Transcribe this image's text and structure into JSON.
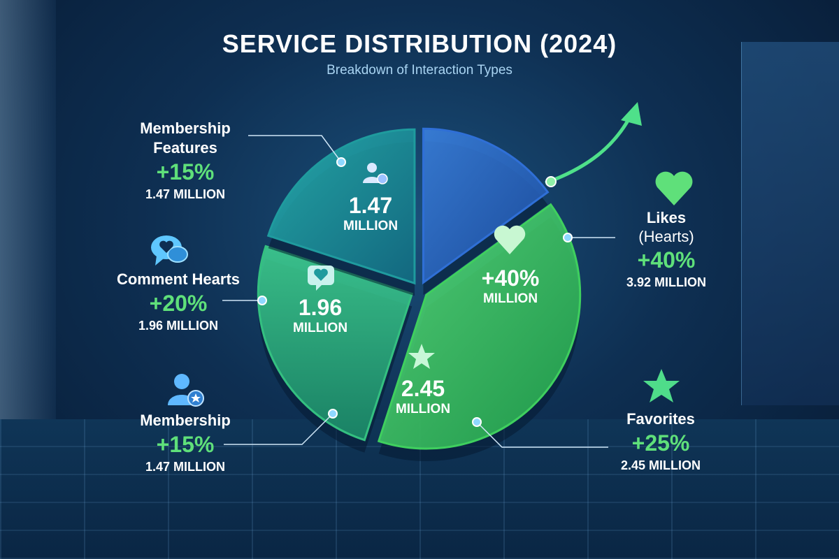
{
  "chart_data": {
    "type": "pie",
    "title": "SERVICE DISTRIBUTION (2024)",
    "subtitle": "Breakdown of Interaction Types",
    "unit_label": "MILLION",
    "slices": [
      {
        "name": "Membership Features",
        "value": 1.47,
        "growth": "+15%",
        "inner_value": "1.47",
        "inner_unit": "MILLION",
        "amount_label": "1.47 MILLION",
        "color": "#2f6fd6"
      },
      {
        "name": "Likes",
        "name_sub": "(Hearts)",
        "value": 3.92,
        "growth": "+40%",
        "inner_value": "+40%",
        "inner_unit": "MILLION",
        "amount_label": "3.92 MILLION",
        "color": "#3fcf5e"
      },
      {
        "name": "Favorites",
        "value": 2.45,
        "growth": "+25%",
        "inner_value": "2.45",
        "inner_unit": "MILLION",
        "amount_label": "2.45 MILLION",
        "color": "#34c080"
      },
      {
        "name": "Comment Hearts",
        "value": 1.96,
        "growth": "+20%",
        "inner_value": "1.96",
        "inner_unit": "MILLION",
        "amount_label": "1.96 MILLION",
        "color": "#1f9b9e"
      }
    ],
    "extra_labels": [
      {
        "name": "Membership",
        "growth": "+15%",
        "amount_label": "1.47 MILLION"
      }
    ]
  },
  "icons": {
    "membership_features": "user-badge-icon",
    "comment_hearts": "chat-heart-icon",
    "membership": "user-star-icon",
    "likes": "heart-icon",
    "favorites": "star-icon",
    "trend": "trend-arrow-icon"
  }
}
